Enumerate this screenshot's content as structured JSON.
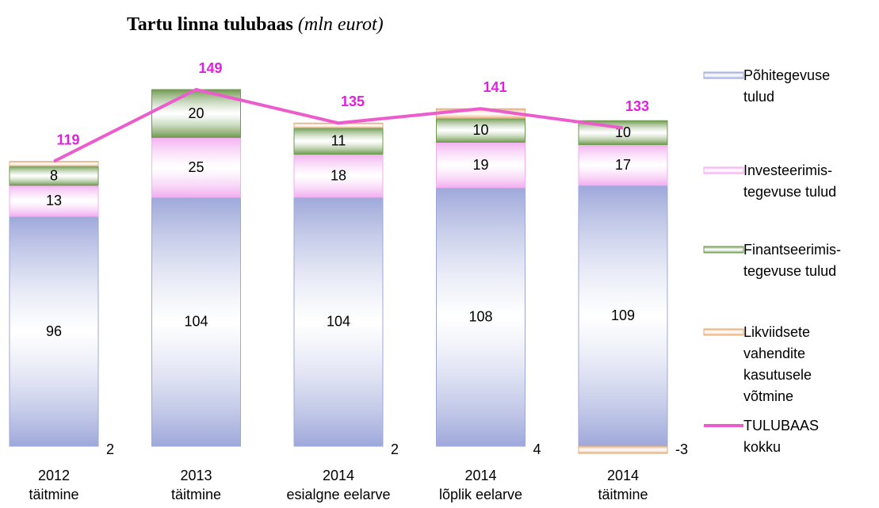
{
  "chart_data": {
    "type": "bar",
    "title": "Tartu linna tulubaas",
    "subtitle": "(mln eurot)",
    "categories": [
      "2012\ntäitmine",
      "2013\ntäitmine",
      "2014\nesialgne eelarve",
      "2014\nlõplik eelarve",
      "2014\ntäitmine"
    ],
    "stacked": true,
    "series": [
      {
        "name": "Põhitegevuse tulud",
        "color": "#9ea8da",
        "values": [
          96,
          104,
          104,
          108,
          109
        ]
      },
      {
        "name": "Investeerimis-tegevuse tulud",
        "color": "#f2aef0",
        "values": [
          13,
          25,
          18,
          19,
          17
        ]
      },
      {
        "name": "Finantseerimis-tegevuse tulud",
        "color": "#6f9a50",
        "values": [
          8,
          20,
          11,
          10,
          10
        ]
      },
      {
        "name": "Likviidsete vahendite kasutusele võtmine",
        "color": "#e6ac78",
        "values": [
          2,
          null,
          2,
          4,
          -3
        ]
      },
      {
        "name": "TULUBAAS kokku",
        "type": "line",
        "color": "#ec5ccc",
        "label_color": "#e020e0",
        "values": [
          119,
          149,
          135,
          141,
          133
        ]
      }
    ]
  }
}
